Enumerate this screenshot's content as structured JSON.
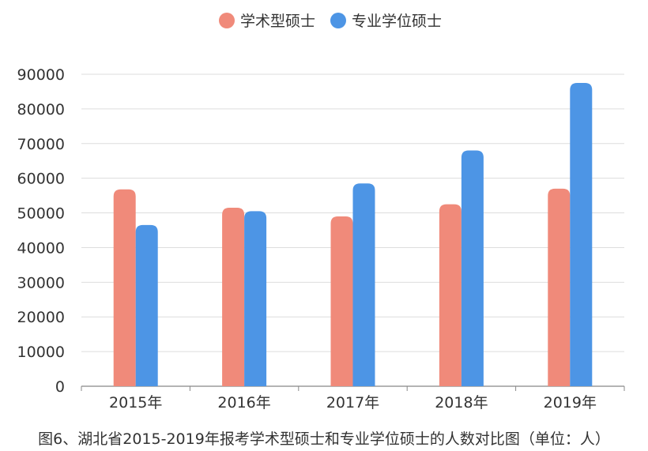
{
  "caption": "图6、湖北省2015-2019年报考学术型硕士和专业学位硕士的人数对比图（单位：人）",
  "colors": {
    "academic": "#F08A7A",
    "professional": "#4D95E5",
    "grid": "#DDDDDD",
    "axis": "#888888",
    "text": "#333333"
  },
  "chart_data": {
    "type": "bar",
    "categories": [
      "2015年",
      "2016年",
      "2017年",
      "2018年",
      "2019年"
    ],
    "series": [
      {
        "name": "学术型硕士",
        "values": [
          56800,
          51500,
          49000,
          52500,
          57000
        ]
      },
      {
        "name": "专业学位硕士",
        "values": [
          46500,
          50500,
          58500,
          68000,
          87500
        ]
      }
    ],
    "ylim": [
      0,
      90000
    ],
    "yticks": [
      "0",
      "10000",
      "20000",
      "30000",
      "40000",
      "50000",
      "60000",
      "70000",
      "80000",
      "90000"
    ],
    "legend_position": "top-center",
    "grid": true
  }
}
